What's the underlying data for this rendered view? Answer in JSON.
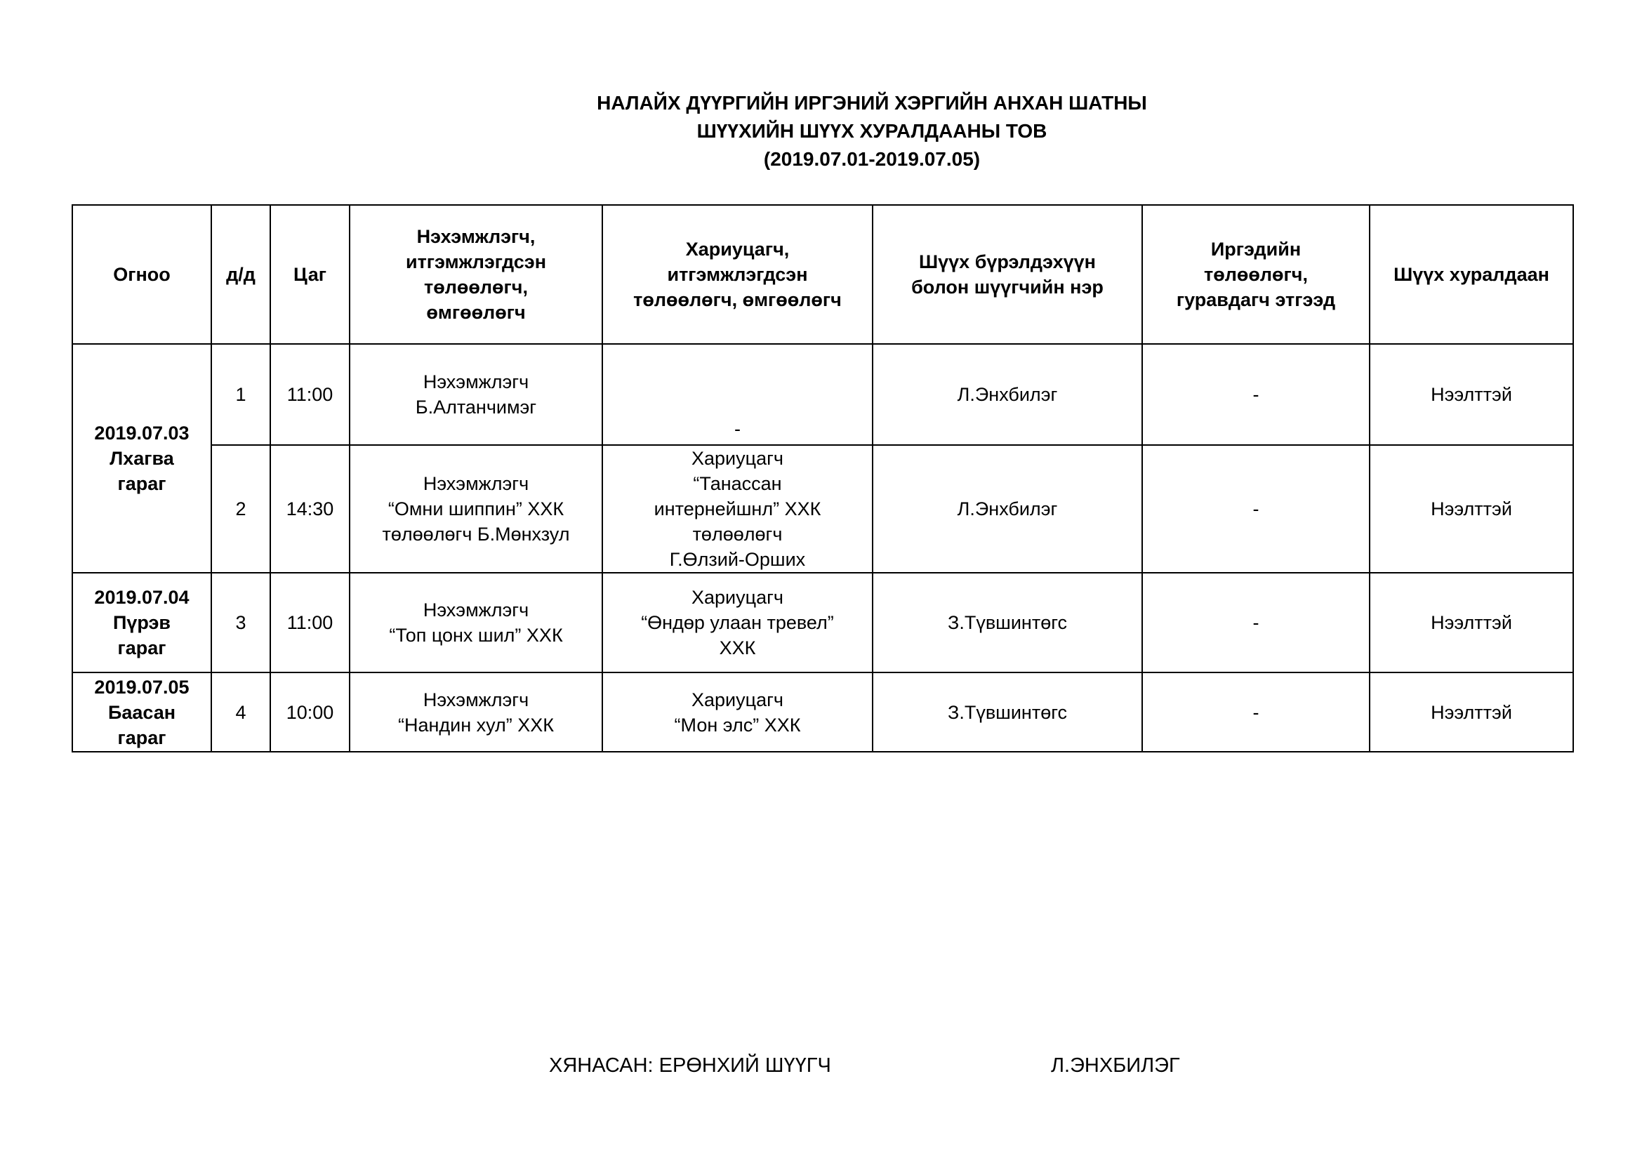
{
  "title": {
    "line1": "НАЛАЙХ ДҮҮРГИЙН ИРГЭНИЙ ХЭРГИЙН АНХАН ШАТНЫ",
    "line2": "ШҮҮХИЙН ШҮҮХ ХУРАЛДААНЫ ТОВ",
    "line3": "(2019.07.01-2019.07.05)"
  },
  "table": {
    "headers": [
      "Огноо",
      "д/д",
      "Цаг",
      "Нэхэмжлэгч,\nитгэмжлэгдсэн\nтөлөөлөгч,\nөмгөөлөгч",
      "Хариуцагч,\nитгэмжлэгдсэн\nтөлөөлөгч, өмгөөлөгч",
      "Шүүх бүрэлдэхүүн\nболон шүүгчийн нэр",
      "Иргэдийн\nтөлөөлөгч,\nгуравдагч этгээд",
      "Шүүх хуралдаан"
    ],
    "dates": [
      "2019.07.03\nЛхагва\nгараг",
      "2019.07.04\nПүрэв\nгараг",
      "2019.07.05\nБаасан\nгараг"
    ],
    "rows": [
      {
        "no": "1",
        "time": "11:00",
        "plaintiff": "Нэхэмжлэгч\nБ.Алтанчимэг",
        "defendant": "-",
        "judge": "Л.Энхбилэг",
        "third": "-",
        "hearing": "Нээлттэй"
      },
      {
        "no": "2",
        "time": "14:30",
        "plaintiff": "Нэхэмжлэгч\n“Омни шиппин” ХХК\nтөлөөлөгч Б.Мөнхзул",
        "defendant": "Хариуцагч\n“Танассан\nинтернейшнл” ХХК\nтөлөөлөгч\nГ.Өлзий-Орших",
        "judge": "Л.Энхбилэг",
        "third": "-",
        "hearing": "Нээлттэй"
      },
      {
        "no": "3",
        "time": "11:00",
        "plaintiff": "Нэхэмжлэгч\n“Топ цонх шил” ХХК",
        "defendant": "Хариуцагч\n“Өндөр улаан тревел”\nХХК",
        "judge": "З.Түвшинтөгс",
        "third": "-",
        "hearing": "Нээлттэй"
      },
      {
        "no": "4",
        "time": "10:00",
        "plaintiff": "Нэхэмжлэгч\n“Нандин хул” ХХК",
        "defendant": "Хариуцагч\n“Мон элс” ХХК",
        "judge": "З.Түвшинтөгс",
        "third": "-",
        "hearing": "Нээлттэй"
      }
    ]
  },
  "footer": {
    "reviewed": "ХЯНАСАН: ЕРӨНХИЙ ШҮҮГЧ",
    "name": "Л.ЭНХБИЛЭГ"
  }
}
